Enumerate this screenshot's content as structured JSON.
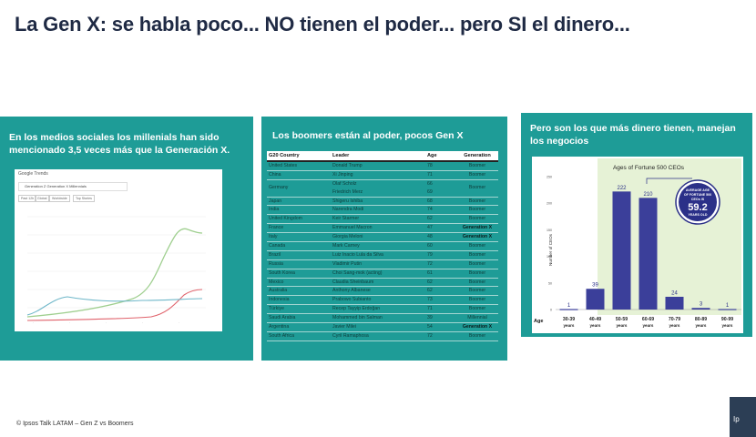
{
  "slide": {
    "title": "La Gen X: se habla poco... NO tienen el poder... pero SI el dinero...",
    "footer": "© Ipsos Talk LATAM – Gen Z vs Boomers"
  },
  "panel1": {
    "heading": "En los medios sociales los millenials han sido mencionado 3,5 veces más que la Generación X.",
    "trends_label": "Google Trends",
    "search_term": "Generation Z Generation X Millennials",
    "chips": [
      "Past 12h",
      "Global",
      "Worldwide",
      "Top Stories"
    ],
    "colors": {
      "millennials": "#9fcf8f",
      "gen_x": "#e0636c",
      "gen_z": "#6fb7c9"
    }
  },
  "panel2": {
    "heading": "Los boomers están al poder, pocos Gen X",
    "columns": [
      "G20 Country",
      "Leader",
      "Age",
      "Generation"
    ],
    "rows": [
      [
        "United States",
        "Donald Trump",
        "78",
        "Boomer"
      ],
      [
        "China",
        "Xi Jinping",
        "71",
        "Boomer"
      ],
      [
        "Germany",
        "Olaf Scholz\nFriedrich Merz",
        "66\n69",
        "Boomer"
      ],
      [
        "Japan",
        "Shigeru Ishiba",
        "68",
        "Boomer"
      ],
      [
        "India",
        "Narendra Modi",
        "74",
        "Boomer"
      ],
      [
        "United Kingdom",
        "Keir Starmer",
        "62",
        "Boomer"
      ],
      [
        "France",
        "Emmanuel Macron",
        "47",
        "Generation X"
      ],
      [
        "Italy",
        "Giorgia Meloni",
        "48",
        "Generation X"
      ],
      [
        "Canada",
        "Mark Carney",
        "60",
        "Boomer"
      ],
      [
        "Brazil",
        "Luiz Inacio Lula da Silva",
        "79",
        "Boomer"
      ],
      [
        "Russia",
        "Vladimir Putin",
        "72",
        "Boomer"
      ],
      [
        "South Korea",
        "Choi Sang-mok (acting)",
        "61",
        "Boomer"
      ],
      [
        "Mexico",
        "Claudia Sheinbaum",
        "62",
        "Boomer"
      ],
      [
        "Australia",
        "Anthony Albanese",
        "62",
        "Boomer"
      ],
      [
        "Indonesia",
        "Prabowo Subianto",
        "73",
        "Boomer"
      ],
      [
        "Türkiye",
        "Recep Tayyip Erdoğan",
        "71",
        "Boomer"
      ],
      [
        "Saudi Arabia",
        "Mohammed bin Salman",
        "39",
        "Millennial"
      ],
      [
        "Argentina",
        "Javier Milei",
        "54",
        "Generation X"
      ],
      [
        "South Africa",
        "Cyril Ramaphosa",
        "72",
        "Boomer"
      ]
    ]
  },
  "panel3": {
    "heading": "Pero son los que más dinero tienen, manejan los negocios",
    "chart_title": "Ages of Fortune 500 CEOs",
    "ylabel": "Number of CEOs",
    "xlabel_prefix": "Age",
    "badge_line1": "AVERAGE AGE",
    "badge_line2": "OF FORTUNE 500",
    "badge_line3": "CEOs IS",
    "badge_value": "59.2",
    "badge_line4": "YEARS OLD"
  },
  "chart_data": {
    "type": "bar",
    "title": "Ages of Fortune 500 CEOs",
    "ylabel": "Number of CEOs",
    "categories": [
      "30-39 years",
      "40-49 years",
      "50-59 years",
      "60-69 years",
      "70-79 years",
      "80-89 years",
      "90-99 years"
    ],
    "values": [
      1,
      39,
      222,
      210,
      24,
      3,
      1
    ],
    "ylim": [
      0,
      250
    ],
    "yticks": [
      0,
      50,
      100,
      150,
      200,
      250
    ],
    "colors": {
      "bar": "#3b3f9a",
      "highlight_zone": "#e6f2d6",
      "badge": "#2b3088"
    }
  }
}
